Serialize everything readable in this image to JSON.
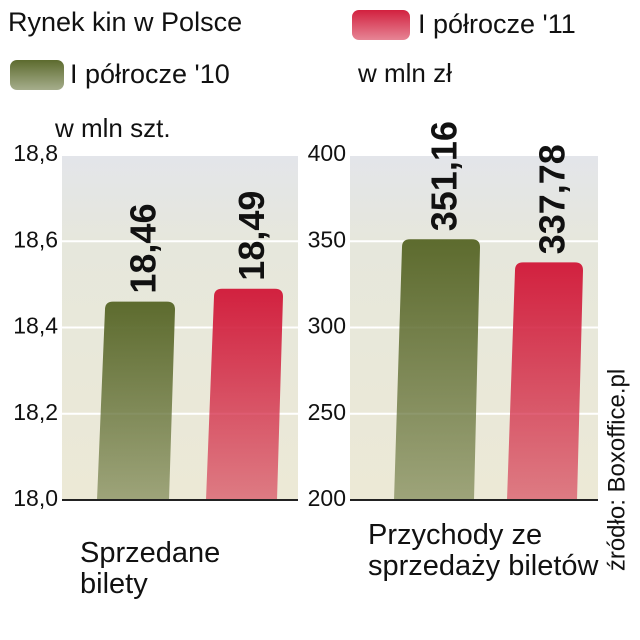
{
  "title": "Rynek kin w Polsce",
  "source": "źródło: Boxoffice.pl",
  "chart_data": [
    {
      "type": "bar",
      "ylabel": "w mln szt.",
      "xlabel": "Sprzedane bilety",
      "ylim": [
        18.0,
        18.8
      ],
      "yticks": [
        {
          "value": 18.0,
          "label": "18,0"
        },
        {
          "value": 18.2,
          "label": "18,2"
        },
        {
          "value": 18.4,
          "label": "18,4"
        },
        {
          "value": 18.6,
          "label": "18,6"
        },
        {
          "value": 18.8,
          "label": "18,8"
        }
      ],
      "grid": true,
      "series": [
        {
          "name": "I półrocze '10",
          "color": "#5d6b2e",
          "values": [
            18.46
          ],
          "value_labels": [
            "18,46"
          ]
        },
        {
          "name": "I półrocze '11",
          "color": "#d2213f",
          "values": [
            18.49
          ],
          "value_labels": [
            "18,49"
          ]
        }
      ]
    },
    {
      "type": "bar",
      "ylabel": "w mln zł",
      "xlabel": "Przychody ze sprzedaży biletów",
      "ylim": [
        200,
        400
      ],
      "yticks": [
        200,
        250,
        300,
        350,
        400
      ],
      "grid": true,
      "series": [
        {
          "color": "#5d6b2e",
          "values": [
            351.16
          ],
          "value_labels": [
            "351,16"
          ]
        },
        {
          "color": "#d2213f",
          "values": [
            337.78
          ],
          "value_labels": [
            "337,78"
          ]
        }
      ]
    }
  ]
}
